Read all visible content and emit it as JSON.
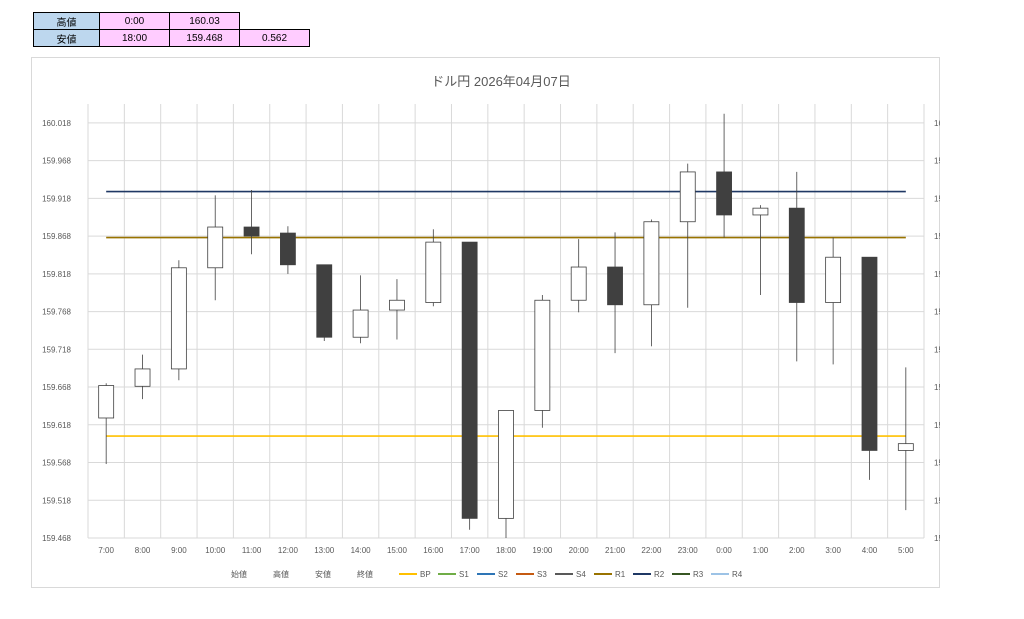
{
  "summary": {
    "rows": [
      {
        "label": "高値",
        "time": "0:00",
        "price": "160.03",
        "range": ""
      },
      {
        "label": "安値",
        "time": "18:00",
        "price": "159.468",
        "range": "0.562"
      }
    ]
  },
  "chart_data": {
    "type": "candlestick",
    "title": "ドル円 2026年04月07日",
    "xlabel": "",
    "ylabel": "",
    "ylim": [
      159.468,
      160.043
    ],
    "y_ticks": [
      "160.018",
      "159.968",
      "159.918",
      "159.868",
      "159.818",
      "159.768",
      "159.718",
      "159.668",
      "159.618",
      "159.568",
      "159.518",
      "159.468"
    ],
    "grid": true,
    "legend_position": "bottom",
    "categories": [
      "7:00",
      "8:00",
      "9:00",
      "10:00",
      "11:00",
      "12:00",
      "13:00",
      "14:00",
      "15:00",
      "16:00",
      "17:00",
      "18:00",
      "19:00",
      "20:00",
      "21:00",
      "22:00",
      "23:00",
      "0:00",
      "1:00",
      "2:00",
      "3:00",
      "4:00",
      "5:00"
    ],
    "candles": [
      {
        "open": 159.627,
        "high": 159.673,
        "low": 159.566,
        "close": 159.67
      },
      {
        "open": 159.669,
        "high": 159.711,
        "low": 159.652,
        "close": 159.692
      },
      {
        "open": 159.692,
        "high": 159.836,
        "low": 159.677,
        "close": 159.826
      },
      {
        "open": 159.826,
        "high": 159.922,
        "low": 159.783,
        "close": 159.88
      },
      {
        "open": 159.88,
        "high": 159.929,
        "low": 159.844,
        "close": 159.868
      },
      {
        "open": 159.872,
        "high": 159.881,
        "low": 159.818,
        "close": 159.83
      },
      {
        "open": 159.83,
        "high": 159.83,
        "low": 159.729,
        "close": 159.734
      },
      {
        "open": 159.734,
        "high": 159.816,
        "low": 159.726,
        "close": 159.77
      },
      {
        "open": 159.77,
        "high": 159.811,
        "low": 159.731,
        "close": 159.783
      },
      {
        "open": 159.78,
        "high": 159.877,
        "low": 159.775,
        "close": 159.86
      },
      {
        "open": 159.86,
        "high": 159.86,
        "low": 159.479,
        "close": 159.494
      },
      {
        "open": 159.494,
        "high": 159.637,
        "low": 159.468,
        "close": 159.637
      },
      {
        "open": 159.637,
        "high": 159.79,
        "low": 159.614,
        "close": 159.783
      },
      {
        "open": 159.783,
        "high": 159.864,
        "low": 159.767,
        "close": 159.827
      },
      {
        "open": 159.827,
        "high": 159.873,
        "low": 159.713,
        "close": 159.777
      },
      {
        "open": 159.777,
        "high": 159.89,
        "low": 159.722,
        "close": 159.887
      },
      {
        "open": 159.887,
        "high": 159.964,
        "low": 159.773,
        "close": 159.953
      },
      {
        "open": 159.953,
        "high": 160.03,
        "low": 159.866,
        "close": 159.896
      },
      {
        "open": 159.896,
        "high": 159.909,
        "low": 159.79,
        "close": 159.905
      },
      {
        "open": 159.905,
        "high": 159.953,
        "low": 159.702,
        "close": 159.78
      },
      {
        "open": 159.78,
        "high": 159.866,
        "low": 159.698,
        "close": 159.84
      },
      {
        "open": 159.84,
        "high": 159.84,
        "low": 159.545,
        "close": 159.584
      },
      {
        "open": 159.584,
        "high": 159.694,
        "low": 159.505,
        "close": 159.593
      }
    ],
    "reference_lines": [
      {
        "name": "BP",
        "value": 159.603,
        "color": "#ffc000"
      },
      {
        "name": "R1",
        "value": 159.866,
        "color": "#997300"
      },
      {
        "name": "R2",
        "value": 159.927,
        "color": "#1f3864"
      }
    ],
    "legend": [
      {
        "name": "始値",
        "color": ""
      },
      {
        "name": "高値",
        "color": ""
      },
      {
        "name": "安値",
        "color": ""
      },
      {
        "name": "終値",
        "color": ""
      },
      {
        "name": "BP",
        "color": "#ffc000"
      },
      {
        "name": "S1",
        "color": "#70ad47"
      },
      {
        "name": "S2",
        "color": "#2e75b6"
      },
      {
        "name": "S3",
        "color": "#c55a11"
      },
      {
        "name": "S4",
        "color": "#595959"
      },
      {
        "name": "R1",
        "color": "#997300"
      },
      {
        "name": "R2",
        "color": "#1f3864"
      },
      {
        "name": "R3",
        "color": "#375623"
      },
      {
        "name": "R4",
        "color": "#9dc3e6"
      }
    ],
    "colors": {
      "bear": "#404040",
      "bull": "#ffffff",
      "outline": "#404040",
      "grid": "#d9d9d9",
      "axis_text": "#595959"
    }
  }
}
